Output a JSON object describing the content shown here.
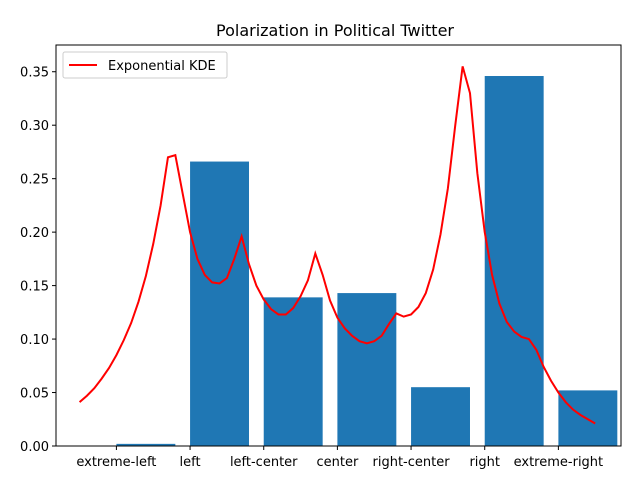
{
  "chart_data": {
    "type": "bar",
    "title": "Polarization in Political Twitter",
    "xlabel": "",
    "ylabel": "",
    "categories": [
      "extreme-left",
      "left",
      "left-center",
      "center",
      "right-center",
      "right",
      "extreme-right"
    ],
    "values": [
      0.002,
      0.266,
      0.139,
      0.143,
      0.055,
      0.346,
      0.052
    ],
    "ylim": [
      0,
      0.375
    ],
    "yticks": [
      "0.00",
      "0.05",
      "0.10",
      "0.15",
      "0.20",
      "0.25",
      "0.30",
      "0.35"
    ],
    "grid": false,
    "legend_position": "top-left",
    "bar_color": "#1f77b4",
    "series": [
      {
        "name": "Exponential KDE",
        "type": "line",
        "color": "#ff0000",
        "x": [
          -0.5,
          -0.4,
          -0.3,
          -0.2,
          -0.1,
          0.0,
          0.1,
          0.2,
          0.3,
          0.4,
          0.5,
          0.6,
          0.7,
          0.8,
          0.9,
          1.0,
          1.1,
          1.2,
          1.3,
          1.4,
          1.5,
          1.6,
          1.7,
          1.8,
          1.9,
          2.0,
          2.1,
          2.2,
          2.3,
          2.4,
          2.5,
          2.6,
          2.7,
          2.8,
          2.9,
          3.0,
          3.1,
          3.2,
          3.3,
          3.4,
          3.5,
          3.6,
          3.7,
          3.8,
          3.9,
          4.0,
          4.1,
          4.2,
          4.3,
          4.4,
          4.5,
          4.6,
          4.7,
          4.8,
          4.9,
          5.0,
          5.1,
          5.2,
          5.3,
          5.4,
          5.5,
          5.6,
          5.7,
          5.8,
          5.9,
          6.0,
          6.1,
          6.2,
          6.3,
          6.4,
          6.5
        ],
        "y": [
          0.041,
          0.047,
          0.054,
          0.063,
          0.073,
          0.085,
          0.099,
          0.115,
          0.135,
          0.159,
          0.189,
          0.225,
          0.27,
          0.272,
          0.236,
          0.2,
          0.175,
          0.16,
          0.153,
          0.152,
          0.157,
          0.175,
          0.196,
          0.17,
          0.15,
          0.137,
          0.128,
          0.123,
          0.123,
          0.129,
          0.14,
          0.155,
          0.18,
          0.16,
          0.136,
          0.12,
          0.11,
          0.103,
          0.098,
          0.096,
          0.098,
          0.103,
          0.114,
          0.124,
          0.121,
          0.123,
          0.13,
          0.143,
          0.165,
          0.198,
          0.241,
          0.3,
          0.355,
          0.33,
          0.255,
          0.2,
          0.16,
          0.133,
          0.116,
          0.107,
          0.102,
          0.1,
          0.09,
          0.074,
          0.061,
          0.05,
          0.041,
          0.034,
          0.029,
          0.025,
          0.021
        ]
      }
    ]
  }
}
